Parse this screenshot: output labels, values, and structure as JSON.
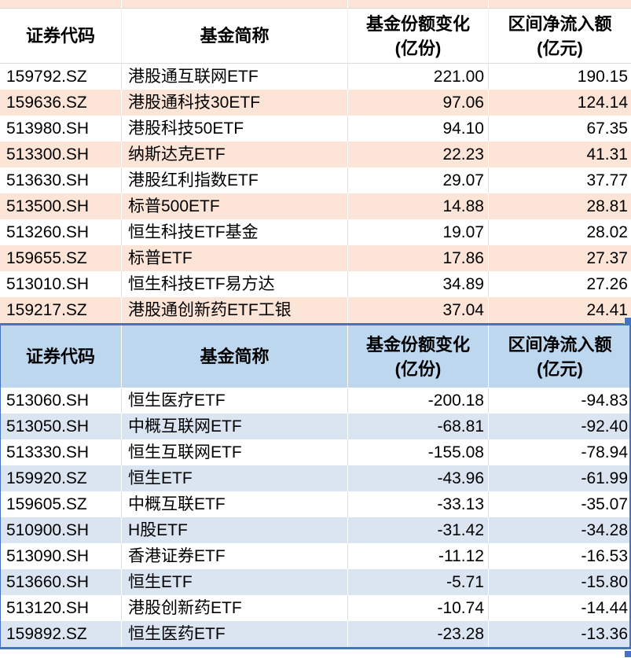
{
  "colors": {
    "selection_blue": "#4472C4",
    "inflow_row_fill": "#FCE4D6",
    "outflow_row_fill": "#DBE5F1",
    "outflow_header_fill": "#BDD7EE"
  },
  "tables": [
    {
      "id": "inflow",
      "header": {
        "code": "证券代码",
        "name": "基金简称",
        "share_l1": "基金份额变化",
        "share_l2": "(亿份)",
        "inflow_l1": "区间净流入额",
        "inflow_l2": "(亿元)"
      },
      "rows": [
        {
          "code": "159792.SZ",
          "name": "港股通互联网ETF",
          "share": "221.00",
          "inflow": "190.15"
        },
        {
          "code": "159636.SZ",
          "name": "港股通科技30ETF",
          "share": "97.06",
          "inflow": "124.14"
        },
        {
          "code": "513980.SH",
          "name": "港股科技50ETF",
          "share": "94.10",
          "inflow": "67.35"
        },
        {
          "code": "513300.SH",
          "name": "纳斯达克ETF",
          "share": "22.23",
          "inflow": "41.31"
        },
        {
          "code": "513630.SH",
          "name": "港股红利指数ETF",
          "share": "29.07",
          "inflow": "37.77"
        },
        {
          "code": "513500.SH",
          "name": "标普500ETF",
          "share": "14.88",
          "inflow": "28.81"
        },
        {
          "code": "513260.SH",
          "name": "恒生科技ETF基金",
          "share": "19.07",
          "inflow": "28.02"
        },
        {
          "code": "159655.SZ",
          "name": "标普ETF",
          "share": "17.86",
          "inflow": "27.37"
        },
        {
          "code": "513010.SH",
          "name": "恒生科技ETF易方达",
          "share": "34.89",
          "inflow": "27.26"
        },
        {
          "code": "159217.SZ",
          "name": "港股通创新药ETF工银",
          "share": "37.04",
          "inflow": "24.41"
        }
      ]
    },
    {
      "id": "outflow",
      "header": {
        "code": "证券代码",
        "name": "基金简称",
        "share_l1": "基金份额变化",
        "share_l2": "(亿份)",
        "inflow_l1": "区间净流入额",
        "inflow_l2": "(亿元)"
      },
      "rows": [
        {
          "code": "513060.SH",
          "name": "恒生医疗ETF",
          "share": "-200.18",
          "inflow": "-94.83"
        },
        {
          "code": "513050.SH",
          "name": "中概互联网ETF",
          "share": "-68.81",
          "inflow": "-92.40"
        },
        {
          "code": "513330.SH",
          "name": "恒生互联网ETF",
          "share": "-155.08",
          "inflow": "-78.94"
        },
        {
          "code": "159920.SZ",
          "name": "恒生ETF",
          "share": "-43.96",
          "inflow": "-61.99"
        },
        {
          "code": "159605.SZ",
          "name": "中概互联ETF",
          "share": "-33.13",
          "inflow": "-35.07"
        },
        {
          "code": "510900.SH",
          "name": "H股ETF",
          "share": "-31.42",
          "inflow": "-34.28"
        },
        {
          "code": "513090.SH",
          "name": "香港证券ETF",
          "share": "-11.12",
          "inflow": "-16.53"
        },
        {
          "code": "513660.SH",
          "name": "恒生ETF",
          "share": "-5.71",
          "inflow": "-15.80"
        },
        {
          "code": "513120.SH",
          "name": "港股创新药ETF",
          "share": "-10.74",
          "inflow": "-14.44"
        },
        {
          "code": "159892.SZ",
          "name": "恒生医药ETF",
          "share": "-23.28",
          "inflow": "-13.36"
        }
      ]
    }
  ]
}
